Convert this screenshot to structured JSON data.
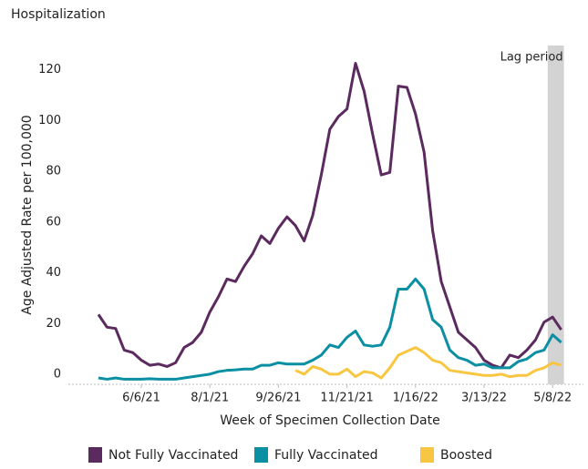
{
  "chart_data": {
    "type": "line",
    "title": "Hospitalization",
    "x_label": "Week of Specimen Collection Date",
    "y_label": "Age Adjusted Rate per 100,000",
    "annotation": "Lag period",
    "categories": [
      null,
      null,
      null,
      null,
      null,
      "6/6/21",
      null,
      null,
      null,
      null,
      null,
      null,
      null,
      "8/1/21",
      null,
      null,
      null,
      null,
      null,
      null,
      null,
      "9/26/21",
      null,
      null,
      null,
      null,
      null,
      null,
      null,
      "11/21/21",
      null,
      null,
      null,
      null,
      null,
      null,
      null,
      "1/16/22",
      null,
      null,
      null,
      null,
      null,
      null,
      null,
      "3/13/22",
      null,
      null,
      null,
      null,
      null,
      null,
      null,
      "5/8/22",
      null
    ],
    "series": [
      {
        "name": "Not Fully Vaccinated",
        "color": "#5b2a5e",
        "values": [
          25,
          20,
          19.5,
          11,
          10,
          7,
          5,
          5.5,
          4.5,
          6,
          12,
          14,
          18,
          26,
          32,
          39,
          38,
          44,
          49,
          56,
          53,
          59,
          63.5,
          60,
          54,
          64,
          80,
          98,
          103,
          106,
          124,
          113,
          96,
          80,
          81,
          115,
          114.5,
          104,
          89,
          58,
          38,
          28,
          18,
          15,
          12,
          7,
          5,
          4,
          9,
          8,
          11,
          15,
          22,
          24,
          19
        ]
      },
      {
        "name": "Fully Vaccinated",
        "color": "#0a8fa3",
        "values": [
          0,
          -0.5,
          0,
          -0.5,
          -0.5,
          -0.5,
          -0.3,
          -0.5,
          -0.5,
          -0.5,
          0,
          0.5,
          1,
          1.5,
          2.5,
          3,
          3.2,
          3.5,
          3.5,
          5,
          5,
          6,
          5.5,
          5.5,
          5.5,
          7,
          9,
          13,
          12,
          16,
          18.5,
          13,
          12.5,
          13,
          20,
          35,
          35,
          39,
          35,
          23,
          20,
          11,
          8,
          7,
          5,
          5.5,
          4,
          4,
          4,
          6.5,
          7.5,
          10,
          11,
          17,
          14
        ]
      },
      {
        "name": "Boosted",
        "color": "#f9c642",
        "values": [
          null,
          null,
          null,
          null,
          null,
          null,
          null,
          null,
          null,
          null,
          null,
          null,
          null,
          null,
          null,
          null,
          null,
          null,
          null,
          null,
          null,
          null,
          null,
          3,
          1.5,
          4.5,
          3.5,
          1.5,
          1.5,
          3.5,
          0.5,
          2.5,
          2,
          0,
          4,
          9,
          10.5,
          12,
          10,
          7,
          6,
          3,
          2.5,
          2,
          1.5,
          1,
          1,
          1.5,
          0.5,
          1,
          1,
          3,
          4,
          6,
          5
        ]
      }
    ],
    "ylim": [
      -2.5,
      131
    ],
    "yticks": [
      0,
      20,
      40,
      60,
      80,
      100,
      120
    ]
  }
}
